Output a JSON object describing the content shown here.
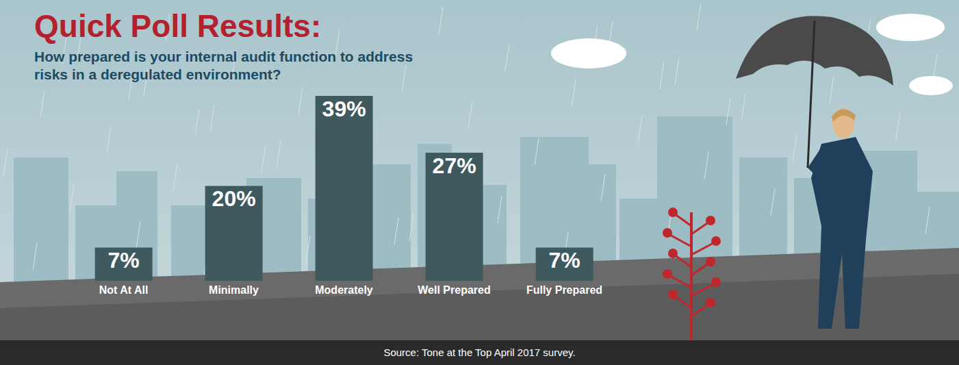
{
  "chart_data": {
    "type": "bar",
    "title": "Quick Poll Results:",
    "subtitle": "How prepared is your internal audit function to address risks in a deregulated environment?",
    "categories": [
      "Not At All",
      "Minimally",
      "Moderately",
      "Well Prepared",
      "Fully Prepared"
    ],
    "values": [
      7,
      20,
      39,
      27,
      7
    ],
    "value_labels": [
      "7%",
      "20%",
      "39%",
      "27%",
      "7%"
    ],
    "color": "#3f5a5e",
    "data_labels": true,
    "tick_labels": "x",
    "grid": false,
    "source": "Source: Tone at the Top April 2017 survey."
  }
}
